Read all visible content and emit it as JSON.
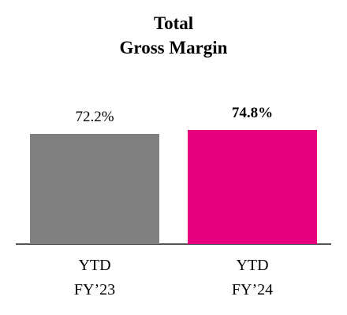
{
  "chart_data": {
    "type": "bar",
    "title": "Total\nGross Margin",
    "categories": [
      "YTD\nFY’23",
      "YTD\nFY’24"
    ],
    "values": [
      72.2,
      74.8
    ],
    "value_labels": [
      "72.2%",
      "74.8%"
    ],
    "colors": [
      "#808080",
      "#e6007e"
    ]
  }
}
